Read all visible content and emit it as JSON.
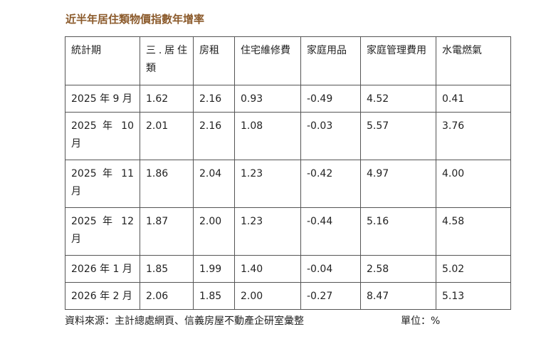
{
  "title": "近半年居住類物價指數年增率",
  "headers": [
    "統計期",
    "三.居住類",
    "房租",
    "住宅維修費",
    "家庭用品",
    "家庭管理費用",
    "水電燃氣"
  ],
  "rows": [
    [
      "2025 年 9 月",
      "1.62",
      "2.16",
      "0.93",
      "-0.49",
      "4.52",
      "0.41"
    ],
    [
      "2025 年 10 月",
      "2.01",
      "2.16",
      "1.08",
      "-0.03",
      "5.57",
      "3.76"
    ],
    [
      "2025 年 11 月",
      "1.86",
      "2.04",
      "1.23",
      "-0.42",
      "4.97",
      "4.00"
    ],
    [
      "2025 年 12 月",
      "1.87",
      "2.00",
      "1.23",
      "-0.44",
      "5.16",
      "4.58"
    ],
    [
      "2026 年 1 月",
      "1.85",
      "1.99",
      "1.40",
      "-0.04",
      "2.58",
      "5.02"
    ],
    [
      "2026 年 2 月",
      "2.06",
      "1.85",
      "2.00",
      "-0.27",
      "8.47",
      "5.13"
    ]
  ],
  "source": "資料來源：主計總處網頁、信義房屋不動產企研室彙整",
  "unit": "單位：%"
}
